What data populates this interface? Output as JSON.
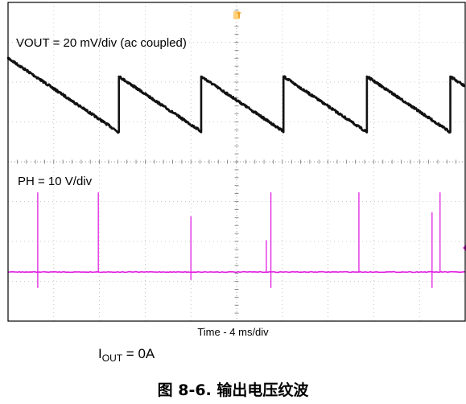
{
  "chart_data": {
    "type": "line",
    "x_axis": {
      "label": "Time - 4 ms/div",
      "divisions": 10,
      "per_div_ms": 4
    },
    "trigger_marker": "T",
    "grid": true,
    "series": [
      {
        "name": "VOUT",
        "label": "VOUT = 20 mV/div (ac coupled)",
        "color": "#111111",
        "scale_mV_per_div": 20,
        "coupling": "ac",
        "shape": "sawtooth",
        "period_ms": 7.3,
        "ripple_pp_mV": 28,
        "jump_times_ms": [
          9.7,
          16.9,
          24.1,
          31.4,
          38.7
        ],
        "fuzz": 1.4
      },
      {
        "name": "PH",
        "label": "PH = 10 V/div",
        "color": "#e020e0",
        "scale_V_per_div": 10,
        "spike_times_ms": [
          2.6,
          7.9,
          16.0,
          22.6,
          23.0,
          30.7,
          37.1,
          37.8,
          40.8
        ],
        "spike_heights_V": [
          20,
          20,
          14,
          8,
          20,
          20,
          15,
          20,
          10
        ],
        "spike_dips_V": [
          -4,
          0,
          -2,
          0,
          -4,
          0,
          -4,
          0,
          0
        ]
      }
    ]
  },
  "condition": {
    "symbol": "I",
    "subscript": "OUT",
    "value": " = 0A"
  },
  "caption": "图 8-6. 输出电压纹波"
}
